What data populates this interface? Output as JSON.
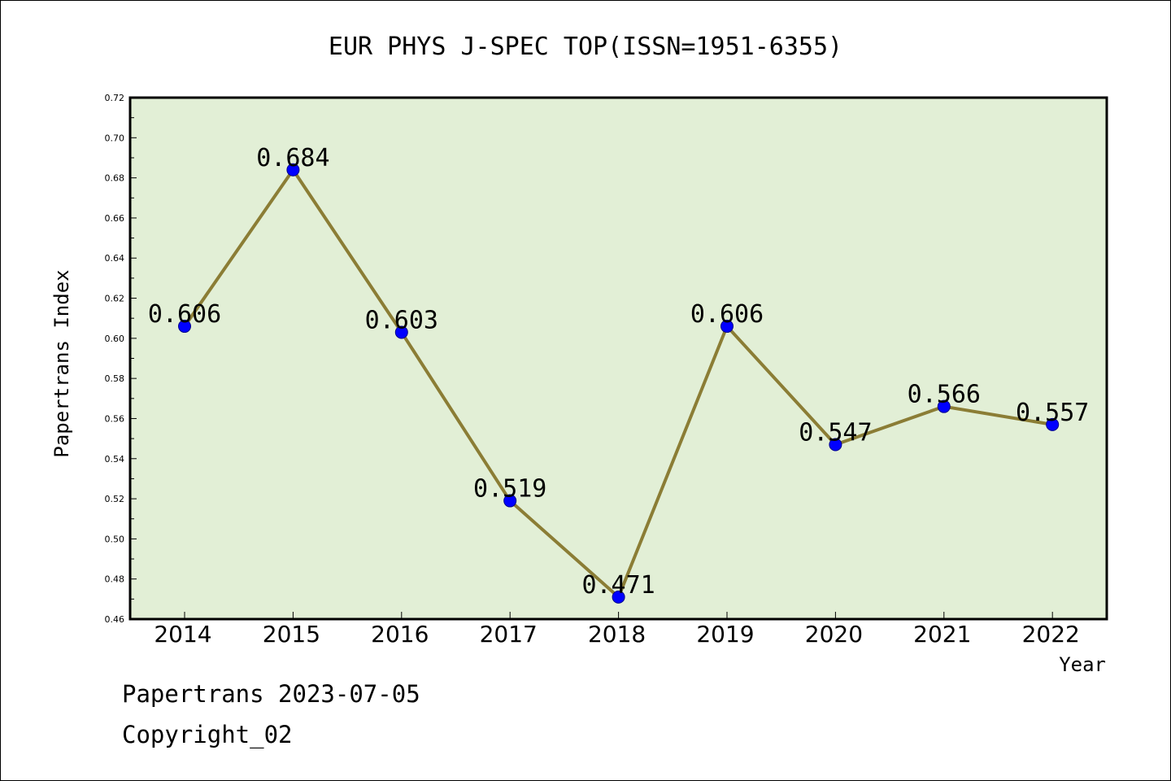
{
  "chart_data": {
    "type": "line",
    "title": "EUR PHYS J-SPEC TOP(ISSN=1951-6355)",
    "xlabel": "Year",
    "ylabel": "Papertrans Index",
    "categories": [
      "2014",
      "2015",
      "2016",
      "2017",
      "2018",
      "2019",
      "2020",
      "2021",
      "2022"
    ],
    "values": [
      0.606,
      0.684,
      0.603,
      0.519,
      0.471,
      0.606,
      0.547,
      0.566,
      0.557
    ],
    "data_labels": [
      "0.606",
      "0.684",
      "0.603",
      "0.519",
      "0.471",
      "0.606",
      "0.547",
      "0.566",
      "0.557"
    ],
    "ylim": [
      0.46,
      0.72
    ],
    "yticks": [
      "0.46",
      "0.48",
      "0.50",
      "0.52",
      "0.54",
      "0.56",
      "0.58",
      "0.60",
      "0.62",
      "0.64",
      "0.66",
      "0.68",
      "0.70",
      "0.72"
    ],
    "grid": false,
    "colors": {
      "plot_background": "#e2efd6",
      "line": "#8b7d35",
      "marker": "#0000ff"
    }
  },
  "footer": {
    "source": "Papertrans 2023-07-05",
    "copyright": "Copyright_02"
  }
}
